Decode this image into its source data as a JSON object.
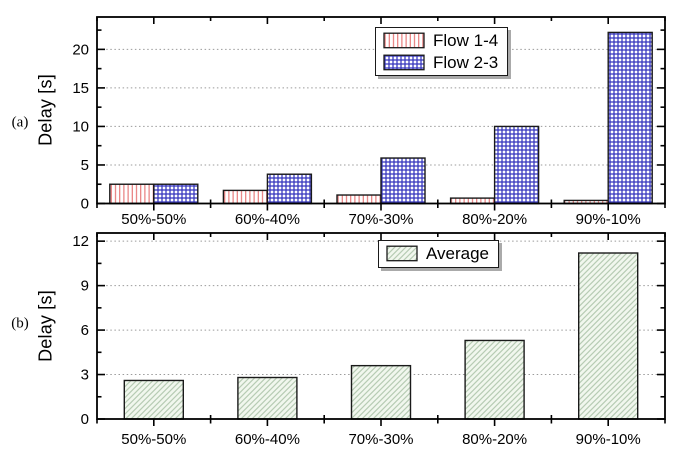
{
  "figure": {
    "background": "#ffffff",
    "panels": [
      {
        "label": "(a)",
        "ylabel": "Delay [s]"
      },
      {
        "label": "(b)",
        "ylabel": "Delay [s]"
      }
    ]
  },
  "chart_data": [
    {
      "type": "bar",
      "panel": "(a)",
      "title": "",
      "xlabel": "",
      "ylabel": "Delay [s]",
      "categories": [
        "50%-50%",
        "60%-40%",
        "70%-30%",
        "80%-20%",
        "90%-10%"
      ],
      "series": [
        {
          "name": "Flow 1-4",
          "values": [
            2.5,
            1.7,
            1.1,
            0.7,
            0.4
          ],
          "swatch": "red-vertical-hatch"
        },
        {
          "name": "Flow 2-3",
          "values": [
            2.5,
            3.8,
            5.9,
            10.0,
            22.2
          ],
          "swatch": "blue-crosshatch"
        }
      ],
      "ylim": [
        0,
        24.2
      ],
      "yticks": [
        0,
        5,
        10,
        15,
        20
      ],
      "minor_step": 2.5,
      "grid": "horizontal dotted at major ticks",
      "legend_position": "top-center"
    },
    {
      "type": "bar",
      "panel": "(b)",
      "title": "",
      "xlabel": "",
      "ylabel": "Delay [s]",
      "categories": [
        "50%-50%",
        "60%-40%",
        "70%-30%",
        "80%-20%",
        "90%-10%"
      ],
      "series": [
        {
          "name": "Average",
          "values": [
            2.6,
            2.8,
            3.6,
            5.3,
            11.2
          ],
          "swatch": "green-diagonal-hatch"
        }
      ],
      "ylim": [
        0,
        12.55
      ],
      "yticks": [
        0,
        3,
        6,
        9,
        12
      ],
      "minor_step": 1.5,
      "grid": "horizontal dotted at major ticks",
      "legend_position": "top-center"
    }
  ],
  "colors": {
    "red_hatch": "#e57070",
    "blue_hatch": "#3535bd",
    "green_hatch_line": "#b7ccb4",
    "green_fill": "#f1f7ee",
    "bar_border": "#1a1a1a",
    "frame": "#000000",
    "gridline": "#9b9b9b",
    "text": "#000000"
  }
}
